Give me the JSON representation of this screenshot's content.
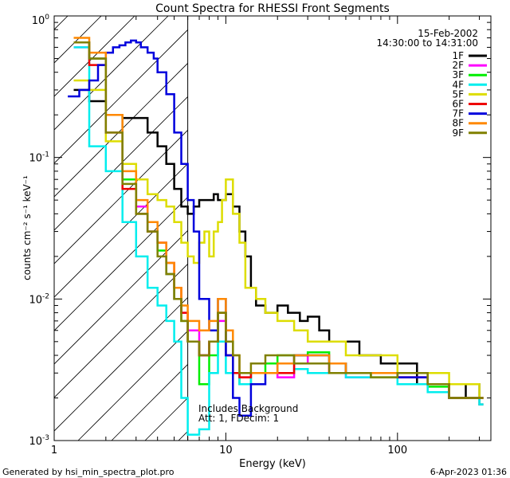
{
  "chart_data": {
    "type": "line",
    "title": "Count Spectra for RHESSI Front Segments",
    "xlabel": "Energy (keV)",
    "ylabel": "counts cm⁻² s⁻¹ keV⁻¹",
    "x_scale": "log",
    "y_scale": "log",
    "xlim": [
      1,
      350
    ],
    "ylim": [
      0.001,
      1
    ],
    "x_ticks": [
      {
        "value": 1,
        "label": "1"
      },
      {
        "value": 10,
        "label": "10"
      },
      {
        "value": 100,
        "label": "100"
      }
    ],
    "y_ticks": [
      {
        "value": 0.001,
        "base": "10",
        "exp": "-3"
      },
      {
        "value": 0.01,
        "base": "10",
        "exp": "-2"
      },
      {
        "value": 0.1,
        "base": "10",
        "exp": "-1"
      },
      {
        "value": 1,
        "base": "10",
        "exp": "0"
      }
    ],
    "date": "15-Feb-2002",
    "time_range": "14:30:00 to 14:31:00",
    "annotations": [
      "Includes Background",
      "Att: 1, FDecim: 1"
    ],
    "attenuator_edge_keV": 6,
    "shaded_region": [
      1.0,
      6
    ],
    "series": [
      {
        "name": "1F",
        "color": "#000000",
        "x": [
          1.3,
          1.6,
          2.0,
          2.5,
          3.0,
          3.5,
          4.0,
          4.5,
          5.0,
          5.5,
          6,
          6.5,
          7,
          7.5,
          8,
          8.5,
          9,
          9.5,
          10,
          11,
          12,
          13,
          14,
          15,
          17,
          20,
          23,
          27,
          30,
          35,
          40,
          50,
          60,
          80,
          100,
          130,
          160,
          200,
          250,
          300
        ],
        "y": [
          0.3,
          0.25,
          0.2,
          0.19,
          0.19,
          0.15,
          0.12,
          0.09,
          0.06,
          0.045,
          0.04,
          0.045,
          0.05,
          0.05,
          0.05,
          0.055,
          0.05,
          0.05,
          0.055,
          0.045,
          0.03,
          0.02,
          0.012,
          0.009,
          0.008,
          0.009,
          0.008,
          0.007,
          0.0075,
          0.006,
          0.005,
          0.005,
          0.004,
          0.0035,
          0.0035,
          0.0025,
          0.0025,
          0.002,
          0.0025,
          0.0018
        ]
      },
      {
        "name": "2F",
        "color": "#ff00ff",
        "x": [
          1.3,
          1.6,
          2.0,
          2.5,
          3.0,
          3.5,
          4.0,
          4.5,
          5.0,
          5.5,
          6,
          7,
          8,
          9,
          10,
          11,
          12,
          14,
          17,
          20,
          25,
          30,
          40,
          50,
          70,
          100,
          150,
          200,
          300
        ],
        "y": [
          0.6,
          0.5,
          0.2,
          0.07,
          0.045,
          0.03,
          0.025,
          0.015,
          0.01,
          0.008,
          0.006,
          0.004,
          0.005,
          0.007,
          0.004,
          0.003,
          0.0028,
          0.003,
          0.003,
          0.0028,
          0.004,
          0.0035,
          0.003,
          0.0028,
          0.003,
          0.0028,
          0.0025,
          0.002,
          0.002
        ]
      },
      {
        "name": "3F",
        "color": "#00ee00",
        "x": [
          1.3,
          1.6,
          2.0,
          2.5,
          3.0,
          3.5,
          4.0,
          4.5,
          5.0,
          5.5,
          6,
          7,
          8,
          9,
          10,
          11,
          12,
          14,
          17,
          20,
          25,
          30,
          40,
          50,
          70,
          100,
          150,
          200,
          300
        ],
        "y": [
          0.65,
          0.5,
          0.2,
          0.07,
          0.04,
          0.03,
          0.022,
          0.015,
          0.01,
          0.007,
          0.005,
          0.0025,
          0.004,
          0.008,
          0.005,
          0.003,
          0.0025,
          0.003,
          0.0035,
          0.004,
          0.004,
          0.0042,
          0.0035,
          0.003,
          0.0028,
          0.003,
          0.0024,
          0.002,
          0.002
        ]
      },
      {
        "name": "4F",
        "color": "#00eeee",
        "x": [
          1.3,
          1.6,
          2.0,
          2.5,
          3.0,
          3.5,
          4.0,
          4.5,
          5.0,
          5.5,
          6,
          7,
          8,
          9,
          10,
          12,
          14,
          17,
          20,
          25,
          30,
          40,
          50,
          70,
          100,
          150,
          200,
          300
        ],
        "y": [
          0.6,
          0.12,
          0.08,
          0.035,
          0.02,
          0.012,
          0.009,
          0.007,
          0.005,
          0.002,
          0.0011,
          0.0012,
          0.003,
          0.005,
          0.003,
          0.0025,
          0.003,
          0.003,
          0.003,
          0.0032,
          0.003,
          0.003,
          0.0028,
          0.003,
          0.0025,
          0.0022,
          0.002,
          0.0018
        ]
      },
      {
        "name": "5F",
        "color": "#dddd00",
        "x": [
          1.3,
          1.6,
          2.0,
          2.5,
          3.0,
          3.5,
          4.0,
          4.5,
          5.0,
          5.5,
          6,
          6.5,
          7,
          7.5,
          8,
          8.5,
          9,
          9.5,
          10,
          11,
          12,
          13,
          15,
          17,
          20,
          25,
          30,
          40,
          50,
          70,
          100,
          150,
          200,
          300
        ],
        "y": [
          0.35,
          0.3,
          0.13,
          0.09,
          0.07,
          0.055,
          0.05,
          0.045,
          0.035,
          0.025,
          0.02,
          0.018,
          0.025,
          0.03,
          0.02,
          0.03,
          0.035,
          0.05,
          0.07,
          0.04,
          0.025,
          0.012,
          0.01,
          0.008,
          0.007,
          0.006,
          0.005,
          0.005,
          0.004,
          0.004,
          0.003,
          0.003,
          0.0025,
          0.002
        ]
      },
      {
        "name": "6F",
        "color": "#ee0000",
        "x": [
          1.3,
          1.6,
          2.0,
          2.5,
          3.0,
          3.5,
          4.0,
          4.5,
          5.0,
          5.5,
          6,
          7,
          8,
          9,
          10,
          11,
          12,
          14,
          17,
          20,
          25,
          30,
          40,
          50,
          70,
          100,
          150,
          200,
          300
        ],
        "y": [
          0.65,
          0.45,
          0.15,
          0.06,
          0.04,
          0.03,
          0.025,
          0.018,
          0.012,
          0.008,
          0.005,
          0.004,
          0.005,
          0.008,
          0.004,
          0.003,
          0.0028,
          0.003,
          0.003,
          0.003,
          0.0035,
          0.0035,
          0.003,
          0.003,
          0.003,
          0.0028,
          0.0025,
          0.002,
          0.002
        ]
      },
      {
        "name": "7F",
        "color": "#0000dd",
        "x": [
          1.2,
          1.4,
          1.6,
          1.8,
          2.0,
          2.2,
          2.4,
          2.6,
          2.8,
          3.0,
          3.2,
          3.5,
          3.8,
          4.0,
          4.5,
          5.0,
          5.5,
          6.0,
          6.5,
          7,
          8,
          9,
          10,
          11,
          12,
          14,
          17,
          20,
          25,
          30,
          40,
          50,
          70,
          100,
          150,
          200,
          300
        ],
        "y": [
          0.27,
          0.3,
          0.35,
          0.45,
          0.55,
          0.6,
          0.62,
          0.65,
          0.67,
          0.65,
          0.6,
          0.55,
          0.5,
          0.4,
          0.28,
          0.15,
          0.09,
          0.05,
          0.03,
          0.01,
          0.006,
          0.01,
          0.004,
          0.002,
          0.0015,
          0.0025,
          0.003,
          0.0035,
          0.004,
          0.004,
          0.0035,
          0.003,
          0.003,
          0.0028,
          0.0025,
          0.002,
          0.002
        ]
      },
      {
        "name": "8F",
        "color": "#ff8800",
        "x": [
          1.3,
          1.6,
          2.0,
          2.5,
          3.0,
          3.5,
          4.0,
          4.5,
          5.0,
          5.5,
          6,
          7,
          8,
          9,
          10,
          11,
          12,
          14,
          17,
          20,
          25,
          30,
          40,
          50,
          70,
          100,
          150,
          200,
          300
        ],
        "y": [
          0.7,
          0.55,
          0.2,
          0.08,
          0.05,
          0.035,
          0.025,
          0.018,
          0.012,
          0.009,
          0.007,
          0.006,
          0.007,
          0.01,
          0.006,
          0.004,
          0.003,
          0.003,
          0.003,
          0.0035,
          0.004,
          0.004,
          0.0035,
          0.003,
          0.003,
          0.003,
          0.0025,
          0.002,
          0.002
        ]
      },
      {
        "name": "9F",
        "color": "#808000",
        "x": [
          1.3,
          1.6,
          2.0,
          2.5,
          3.0,
          3.5,
          4.0,
          4.5,
          5.0,
          5.5,
          6,
          7,
          8,
          9,
          10,
          11,
          12,
          14,
          17,
          20,
          25,
          30,
          40,
          50,
          70,
          100,
          150,
          200,
          300
        ],
        "y": [
          0.65,
          0.5,
          0.15,
          0.065,
          0.04,
          0.03,
          0.02,
          0.015,
          0.01,
          0.007,
          0.005,
          0.004,
          0.005,
          0.008,
          0.005,
          0.004,
          0.003,
          0.0035,
          0.004,
          0.004,
          0.0035,
          0.0035,
          0.003,
          0.003,
          0.0028,
          0.003,
          0.0025,
          0.002,
          0.002
        ]
      }
    ]
  },
  "footer": {
    "left": "Generated by hsi_min_spectra_plot.pro",
    "right": "6-Apr-2023 01:36"
  }
}
